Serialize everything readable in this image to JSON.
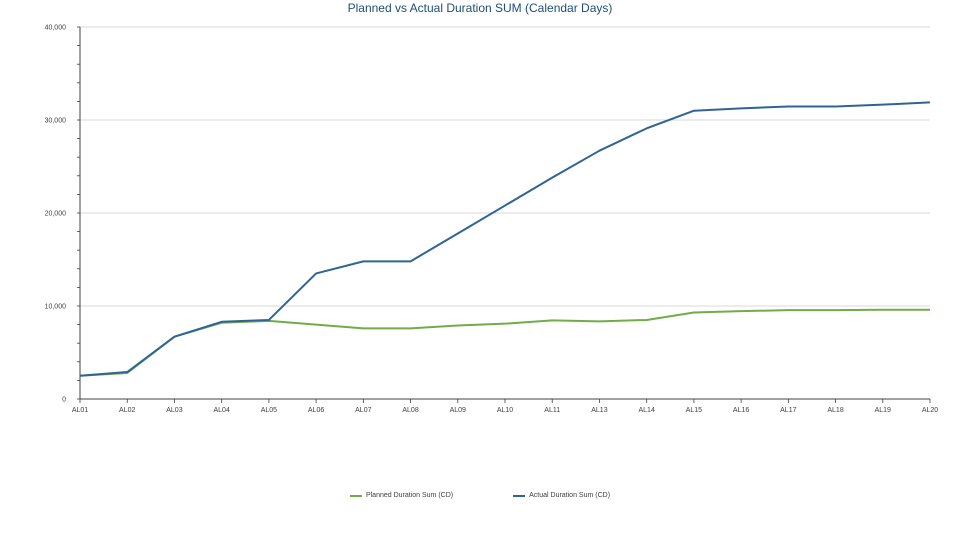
{
  "chart_data": {
    "type": "line",
    "title": "Planned vs Actual Duration SUM (Calendar Days)",
    "categories": [
      "AL01",
      "AL02",
      "AL03",
      "AL04",
      "AL05",
      "AL06",
      "AL07",
      "AL08",
      "AL09",
      "AL10",
      "AL11",
      "AL13",
      "AL14",
      "AL15",
      "AL16",
      "AL17",
      "AL18",
      "AL19",
      "AL20"
    ],
    "series": [
      {
        "name": "Planned Duration Sum (CD)",
        "color": "#70ad47",
        "values": [
          2500,
          2800,
          6700,
          8200,
          8400,
          8000,
          7600,
          7600,
          7900,
          8100,
          8450,
          8350,
          8500,
          9300,
          9450,
          9550,
          9550,
          9600,
          9600
        ]
      },
      {
        "name": "Actual Duration Sum (CD)",
        "color": "#2e6496",
        "values": [
          2500,
          2900,
          6700,
          8300,
          8500,
          13500,
          14800,
          14800,
          17800,
          20800,
          23800,
          26700,
          29100,
          31000,
          31250,
          31450,
          31450,
          31650,
          31900
        ]
      }
    ],
    "ylim": [
      0,
      40000
    ],
    "yticks": [
      "0",
      "10,000",
      "20,000",
      "30,000",
      "40,000"
    ],
    "ytick_values": [
      0,
      10000,
      20000,
      30000,
      40000
    ],
    "grid": true,
    "legend_position": "bottom"
  }
}
